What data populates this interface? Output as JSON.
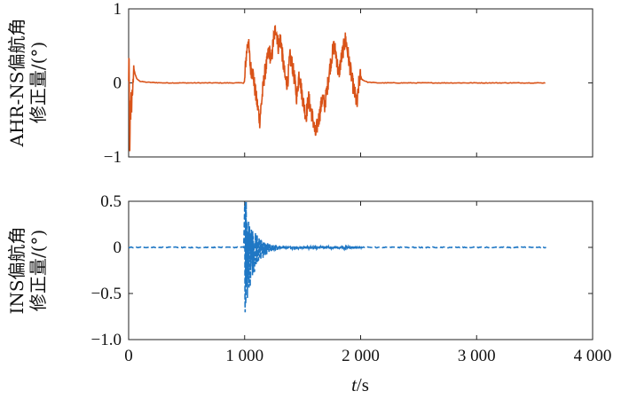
{
  "chart_data": [
    {
      "type": "line",
      "ylabel_lines": [
        "AHR-NS偏航角",
        "修正量/(°)"
      ],
      "xlabel": "",
      "xlim": [
        0,
        4000
      ],
      "ylim": [
        -1,
        1
      ],
      "y_ticks": [
        "1",
        "0",
        "−1"
      ],
      "x_ticks": [],
      "grid": false,
      "series": [
        {
          "color": "#d95319",
          "line_style": "solid",
          "keypoints": [
            [
              0,
              0.0
            ],
            [
              3,
              0.55
            ],
            [
              6,
              -0.2
            ],
            [
              10,
              -0.95
            ],
            [
              14,
              -0.3
            ],
            [
              18,
              -0.55
            ],
            [
              22,
              -0.1
            ],
            [
              26,
              -0.35
            ],
            [
              30,
              -0.05
            ],
            [
              34,
              -0.2
            ],
            [
              38,
              0.0
            ],
            [
              44,
              0.2
            ],
            [
              55,
              0.12
            ],
            [
              70,
              0.06
            ],
            [
              100,
              0.02
            ],
            [
              150,
              0.01
            ],
            [
              300,
              0.0
            ],
            [
              990,
              0.0
            ],
            [
              1000,
              0.02
            ],
            [
              1010,
              0.3
            ],
            [
              1030,
              0.6
            ],
            [
              1050,
              0.2
            ],
            [
              1070,
              0.15
            ],
            [
              1090,
              -0.1
            ],
            [
              1110,
              -0.3
            ],
            [
              1130,
              -0.5
            ],
            [
              1150,
              -0.2
            ],
            [
              1170,
              0.1
            ],
            [
              1190,
              0.25
            ],
            [
              1210,
              0.45
            ],
            [
              1230,
              0.3
            ],
            [
              1250,
              0.6
            ],
            [
              1270,
              0.75
            ],
            [
              1290,
              0.5
            ],
            [
              1310,
              0.62
            ],
            [
              1330,
              0.3
            ],
            [
              1350,
              0.05
            ],
            [
              1370,
              0.0
            ],
            [
              1390,
              0.35
            ],
            [
              1410,
              0.25
            ],
            [
              1430,
              0.05
            ],
            [
              1450,
              -0.2
            ],
            [
              1470,
              0.15
            ],
            [
              1490,
              -0.1
            ],
            [
              1510,
              -0.3
            ],
            [
              1530,
              -0.45
            ],
            [
              1550,
              -0.2
            ],
            [
              1570,
              -0.35
            ],
            [
              1590,
              -0.5
            ],
            [
              1610,
              -0.7
            ],
            [
              1630,
              -0.55
            ],
            [
              1650,
              -0.4
            ],
            [
              1670,
              -0.2
            ],
            [
              1690,
              -0.3
            ],
            [
              1710,
              -0.1
            ],
            [
              1730,
              0.15
            ],
            [
              1750,
              0.35
            ],
            [
              1770,
              0.5
            ],
            [
              1790,
              0.38
            ],
            [
              1810,
              0.1
            ],
            [
              1830,
              0.3
            ],
            [
              1850,
              0.45
            ],
            [
              1870,
              0.6
            ],
            [
              1890,
              0.4
            ],
            [
              1910,
              0.2
            ],
            [
              1930,
              0.0
            ],
            [
              1950,
              -0.15
            ],
            [
              1970,
              -0.3
            ],
            [
              1985,
              0.0
            ],
            [
              2000,
              0.1
            ],
            [
              2010,
              0.05
            ],
            [
              2030,
              0.03
            ],
            [
              2060,
              0.01
            ],
            [
              2150,
              0.0
            ],
            [
              3600,
              0.0
            ]
          ],
          "noise_segments": [
            [
              0,
              45,
              0.08
            ],
            [
              1000,
              2000,
              0.12
            ]
          ]
        }
      ]
    },
    {
      "type": "line",
      "ylabel_lines": [
        "INS偏航角",
        "修正量/(°)"
      ],
      "xlabel": "t/s",
      "xlim": [
        0,
        4000
      ],
      "ylim": [
        -1,
        0.5
      ],
      "y_ticks": [
        "0.5",
        "0",
        "−0.5",
        "−1.0"
      ],
      "x_ticks": [
        "0",
        "1 000",
        "2 000",
        "3 000",
        "4 000"
      ],
      "grid": false,
      "series": [
        {
          "color": "#1f77c4",
          "line_style": "dashed",
          "baseline": 0,
          "end_x": 3600,
          "burst": {
            "start": 1000,
            "end": 2000,
            "pos_peak": 0.5,
            "neg_peak": -0.8,
            "decay_per_second": 0.012,
            "floor": 0.02
          }
        }
      ]
    }
  ]
}
